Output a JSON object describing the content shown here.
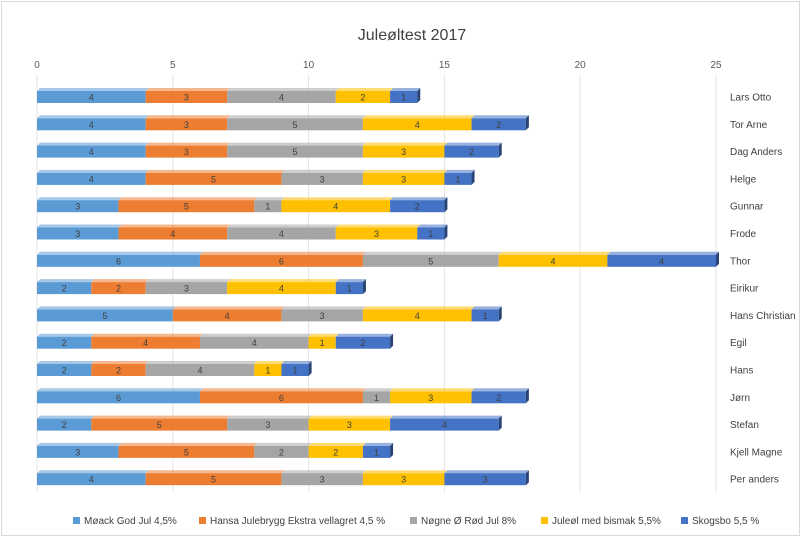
{
  "chart_data": {
    "type": "bar",
    "orientation": "horizontal",
    "stacked": true,
    "title": "Juleøltest 2017",
    "xlim": [
      0,
      25
    ],
    "x_ticks": [
      "0",
      "5",
      "10",
      "15",
      "20",
      "25"
    ],
    "grid": "vertical",
    "legend_position": "bottom",
    "categories": [
      "Lars Otto",
      "Tor Arne",
      "Dag Anders",
      "Helge",
      "Gunnar",
      "Frode",
      "Thor",
      "Eirikur",
      "Hans Christian",
      "Egil",
      "Hans",
      "Jørn",
      "Stefan",
      "Kjell Magne",
      "Per anders"
    ],
    "series": [
      {
        "name": "Møack God Jul 4,5%",
        "color": "#5B9BD5",
        "values": [
          4,
          4,
          4,
          4,
          3,
          3,
          6,
          2,
          5,
          2,
          2,
          6,
          2,
          3,
          4
        ]
      },
      {
        "name": "Hansa Julebrygg Ekstra vellagret 4,5 %",
        "color": "#ED7D31",
        "values": [
          3,
          3,
          3,
          5,
          5,
          4,
          6,
          2,
          4,
          4,
          2,
          6,
          5,
          5,
          5
        ]
      },
      {
        "name": "Nøgne Ø Rød Jul 8%",
        "color": "#A5A5A5",
        "values": [
          4,
          5,
          5,
          3,
          1,
          4,
          5,
          3,
          3,
          4,
          4,
          1,
          3,
          2,
          3
        ]
      },
      {
        "name": "Juleøl med bismak 5,5%",
        "color": "#FFC000",
        "values": [
          2,
          4,
          3,
          3,
          4,
          3,
          4,
          4,
          4,
          1,
          1,
          3,
          3,
          2,
          3
        ]
      },
      {
        "name": "Skogsbo 5,5 %",
        "color": "#4472C4",
        "values": [
          1,
          2,
          2,
          1,
          2,
          1,
          4,
          1,
          1,
          2,
          1,
          2,
          4,
          1,
          3
        ]
      }
    ]
  }
}
